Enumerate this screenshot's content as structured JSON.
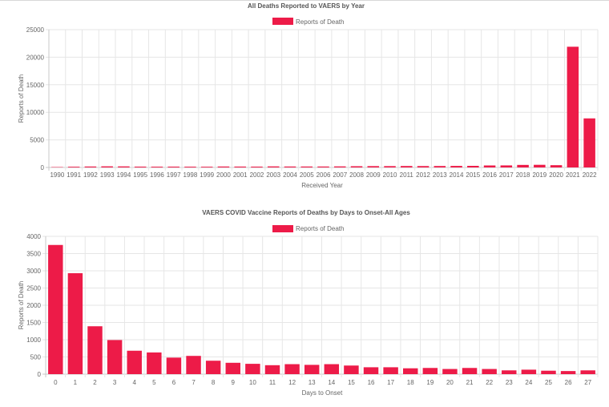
{
  "theme": {
    "bar_color": "#ed1b48",
    "grid_color": "#e6e6e6",
    "axis_color": "#c8c8c8",
    "text_color": "#666666",
    "title_color": "#555555"
  },
  "chart_data": [
    {
      "type": "bar",
      "title": "All Deaths Reported to VAERS by Year",
      "xlabel": "Received Year",
      "ylabel": "Reports of Death",
      "legend": {
        "position": "top",
        "entries": [
          "Reports of Death"
        ]
      },
      "grid": true,
      "ylim": [
        0,
        25000
      ],
      "yticks": [
        0,
        5000,
        10000,
        15000,
        20000,
        25000
      ],
      "categories": [
        "1990",
        "1991",
        "1992",
        "1993",
        "1994",
        "1995",
        "1996",
        "1997",
        "1998",
        "1999",
        "2000",
        "2001",
        "2002",
        "2003",
        "2004",
        "2005",
        "2006",
        "2007",
        "2008",
        "2009",
        "2010",
        "2011",
        "2012",
        "2013",
        "2014",
        "2015",
        "2016",
        "2017",
        "2018",
        "2019",
        "2020",
        "2021",
        "2022"
      ],
      "series": [
        {
          "name": "Reports of Death",
          "values": [
            70,
            130,
            170,
            200,
            190,
            150,
            140,
            150,
            140,
            130,
            170,
            160,
            150,
            190,
            170,
            170,
            170,
            190,
            220,
            240,
            240,
            260,
            250,
            260,
            280,
            290,
            360,
            370,
            460,
            480,
            410,
            21900,
            8900
          ]
        }
      ]
    },
    {
      "type": "bar",
      "title": "VAERS COVID Vaccine Reports of Deaths by Days to Onset-All Ages",
      "xlabel": "Days to Onset",
      "ylabel": "Reports of Death",
      "legend": {
        "position": "top",
        "entries": [
          "Reports of Death"
        ]
      },
      "grid": true,
      "ylim": [
        0,
        4000
      ],
      "yticks": [
        0,
        500,
        1000,
        1500,
        2000,
        2500,
        3000,
        3500,
        4000
      ],
      "categories": [
        "0",
        "1",
        "2",
        "3",
        "4",
        "5",
        "6",
        "7",
        "8",
        "9",
        "10",
        "11",
        "12",
        "13",
        "14",
        "15",
        "16",
        "17",
        "18",
        "19",
        "20",
        "21",
        "22",
        "23",
        "24",
        "25",
        "26",
        "27"
      ],
      "series": [
        {
          "name": "Reports of Death",
          "values": [
            3750,
            2930,
            1390,
            990,
            680,
            630,
            480,
            530,
            390,
            330,
            300,
            260,
            290,
            270,
            290,
            250,
            200,
            200,
            170,
            180,
            150,
            180,
            150,
            110,
            130,
            100,
            90,
            110
          ]
        }
      ]
    }
  ]
}
